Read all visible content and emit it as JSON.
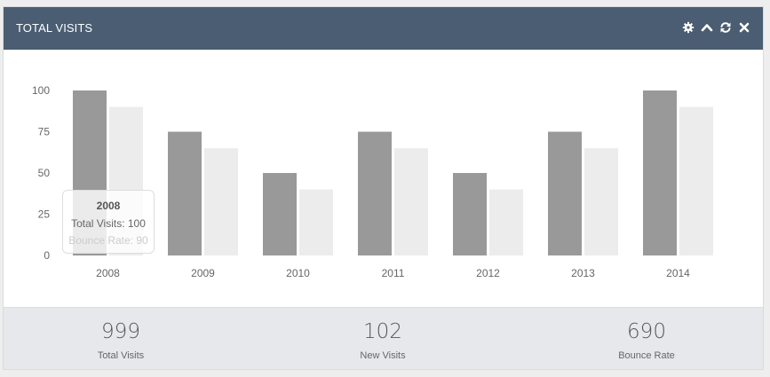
{
  "panel": {
    "title": "TOTAL VISITS",
    "header_icons": [
      "gear-icon",
      "chevron-up-icon",
      "refresh-icon",
      "close-icon"
    ],
    "header_color": "#4a5d72"
  },
  "chart_data": {
    "type": "bar",
    "categories": [
      "2008",
      "2009",
      "2010",
      "2011",
      "2012",
      "2013",
      "2014"
    ],
    "series": [
      {
        "name": "Total Visits",
        "values": [
          100,
          75,
          50,
          75,
          50,
          75,
          100
        ],
        "color": "#999999"
      },
      {
        "name": "Bounce Rate",
        "values": [
          90,
          65,
          40,
          65,
          40,
          65,
          90
        ],
        "color": "#ececec"
      }
    ],
    "yticks": [
      0,
      25,
      50,
      75,
      100
    ],
    "ylim": [
      0,
      100
    ],
    "grid": false
  },
  "tooltip": {
    "title": "2008",
    "line1": "Total Visits: 100",
    "line2": "Bounce Rate: 90"
  },
  "stats": [
    {
      "value": "999",
      "label": "Total Visits"
    },
    {
      "value": "102",
      "label": "New Visits"
    },
    {
      "value": "690",
      "label": "Bounce Rate"
    }
  ]
}
